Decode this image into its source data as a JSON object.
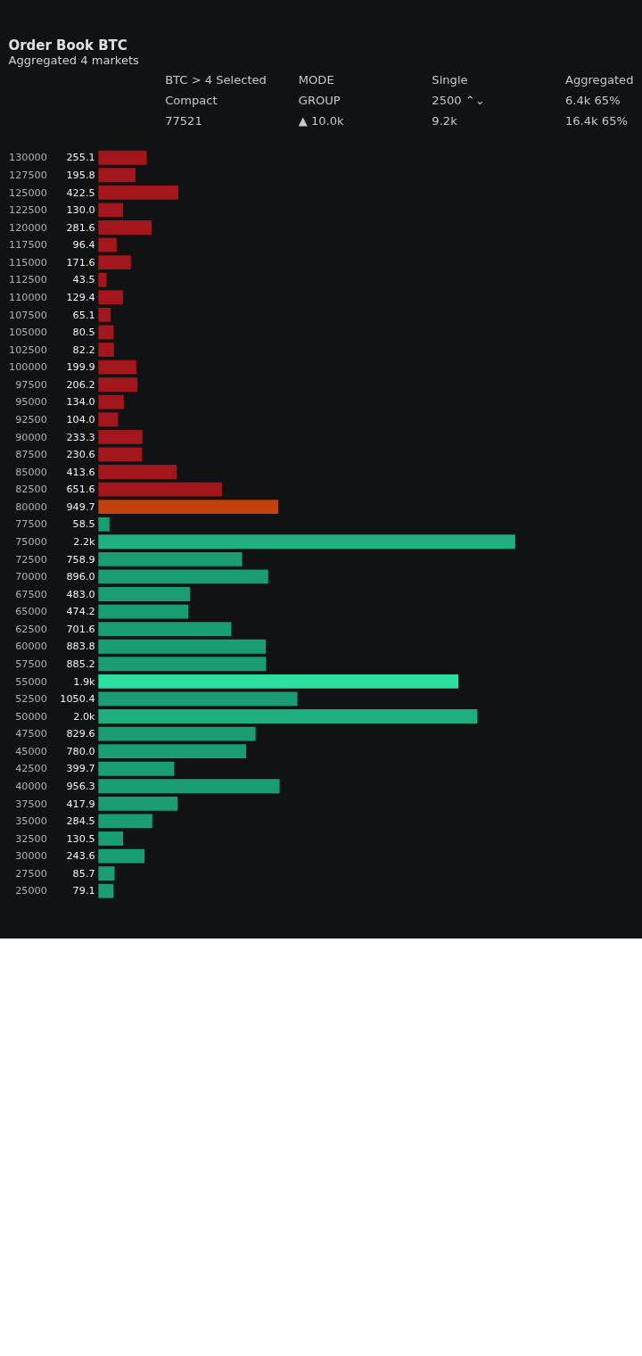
{
  "chart_data": {
    "type": "bar",
    "orientation": "horizontal",
    "title": "Order Book BTC",
    "subtitle": "Aggregated 4 markets",
    "annotations": [
      "BTC > 4 Selected",
      "MODE",
      "Single",
      "Aggregated",
      "Compact",
      "GROUP",
      "2500 ⌃⌄",
      "6.4k 65%",
      "77521",
      "▲ 10.0k",
      "9.2k",
      "16.4k 65%"
    ],
    "categories": [
      "130000",
      "127500",
      "125000",
      "122500",
      "120000",
      "117500",
      "115000",
      "112500",
      "110000",
      "107500",
      "105000",
      "102500",
      "100000",
      "97500",
      "95000",
      "92500",
      "90000",
      "87500",
      "85000",
      "82500",
      "80000",
      "77500",
      "75000",
      "72500",
      "70000",
      "67500",
      "65000",
      "62500",
      "60000",
      "57500",
      "55000",
      "52500",
      "50000",
      "47500",
      "45000",
      "42500",
      "40000",
      "37500",
      "35000",
      "32500",
      "30000",
      "27500",
      "25000"
    ],
    "values": [
      255.1,
      195.8,
      422.5,
      130.0,
      281.6,
      96.4,
      171.6,
      43.5,
      129.4,
      65.1,
      80.5,
      82.2,
      199.9,
      206.2,
      134.0,
      104.0,
      233.3,
      230.6,
      413.6,
      651.6,
      949.7,
      58.5,
      2200,
      758.9,
      896.0,
      483.0,
      474.2,
      701.6,
      883.8,
      885.2,
      1900,
      1050.4,
      2000,
      829.6,
      780.0,
      399.7,
      956.3,
      417.9,
      284.5,
      130.5,
      243.6,
      85.7,
      79.1
    ],
    "value_labels": [
      "255.1",
      "195.8",
      "422.5",
      "130.0",
      "281.6",
      "96.4",
      "171.6",
      "43.5",
      "129.4",
      "65.1",
      "80.5",
      "82.2",
      "199.9",
      "206.2",
      "134.0",
      "104.0",
      "233.3",
      "230.6",
      "413.6",
      "651.6",
      "949.7",
      "58.5",
      "2.2k",
      "758.9",
      "896.0",
      "483.0",
      "474.2",
      "701.6",
      "883.8",
      "885.2",
      "1.9k",
      "1050.4",
      "2.0k",
      "829.6",
      "780.0",
      "399.7",
      "956.3",
      "417.9",
      "284.5",
      "130.5",
      "243.6",
      "85.7",
      "79.1"
    ],
    "colors": [
      "#a3161c",
      "#a3161c",
      "#a3161c",
      "#a3161c",
      "#a3161c",
      "#a3161c",
      "#a3161c",
      "#a3161c",
      "#a3161c",
      "#a3161c",
      "#a3161c",
      "#a3161c",
      "#a3161c",
      "#a3161c",
      "#a3161c",
      "#a3161c",
      "#a3161c",
      "#a3161c",
      "#a3161c",
      "#a3161c",
      "#c2410c",
      "#1a9c74",
      "#1fae80",
      "#1a9c74",
      "#1a9c74",
      "#1a9c74",
      "#1a9c74",
      "#1a9c74",
      "#1a9c74",
      "#1a9c74",
      "#2de0a0",
      "#1a9c74",
      "#1fae80",
      "#1a9c74",
      "#1a9c74",
      "#1a9c74",
      "#1a9c74",
      "#1a9c74",
      "#1a9c74",
      "#1a9c74",
      "#1a9c74",
      "#1a9c74",
      "#1a9c74"
    ]
  }
}
